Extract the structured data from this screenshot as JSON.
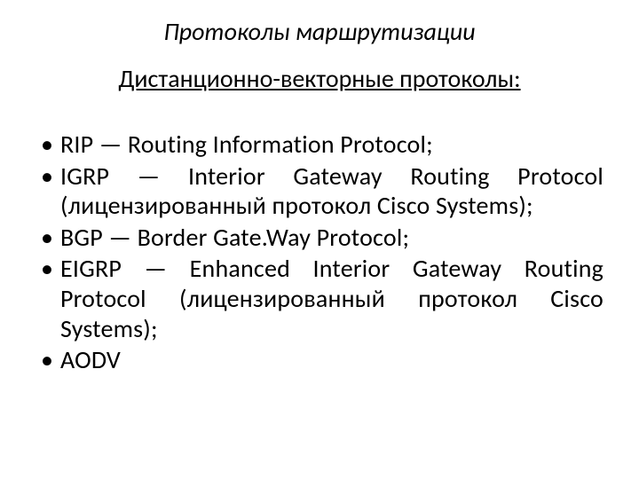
{
  "slide": {
    "title": "Протоколы маршрутизации",
    "subtitle": "Дистанционно-векторные протоколы:",
    "bullets": [
      "RIP — Routing Information Protocol;",
      "IGRP — Interior Gateway Routing Protocol (лицензированный протокол Cisco Systems);",
      "BGP — Border Gate.Way Protocol;",
      "EIGRP — Enhanced Interior Gateway Routing Protocol (лицензированный протокол Cisco Systems);",
      "AODV"
    ],
    "style": {
      "background": "#ffffff",
      "text_color": "#000000",
      "title_fontsize": 28,
      "title_italic": true,
      "subtitle_fontsize": 28,
      "subtitle_underline": true,
      "bullet_fontsize": 28,
      "font_family": "Calibri"
    }
  }
}
